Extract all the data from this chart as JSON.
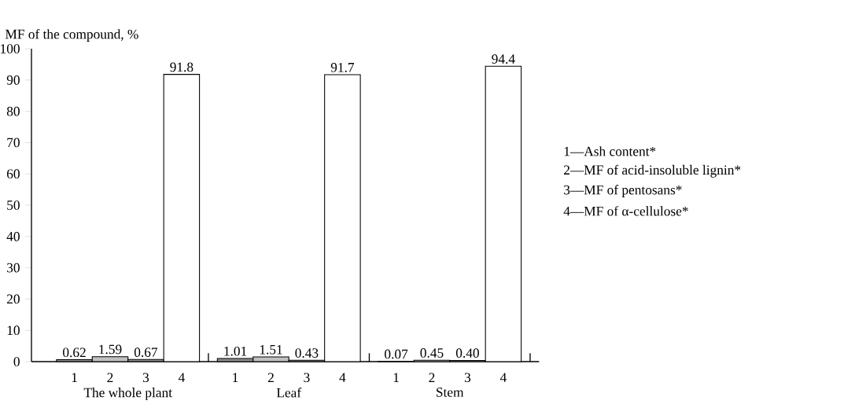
{
  "chart_data": {
    "type": "bar",
    "ylabel": "MF of the compound, %",
    "categories": [
      "1",
      "2",
      "3",
      "4",
      "1",
      "2",
      "3",
      "4",
      "1",
      "2",
      "3",
      "4"
    ],
    "values": [
      0.62,
      1.59,
      0.67,
      91.8,
      1.01,
      1.51,
      0.43,
      91.7,
      0.07,
      0.45,
      0.4,
      94.4
    ],
    "value_labels": [
      "0.62",
      "1.59",
      "0.67",
      "91.8",
      "1.01",
      "1.51",
      "0.43",
      "91.7",
      "0.07",
      "0.45",
      "0.40",
      "94.4"
    ],
    "colors": [
      "#8c8c8c",
      "#c0c0c0",
      "#8c8c8c",
      "#ffffff",
      "#8c8c8c",
      "#c0c0c0",
      "#8c8c8c",
      "#ffffff",
      "#8c8c8c",
      "#c0c0c0",
      "#8c8c8c",
      "#ffffff"
    ],
    "ylim": [
      0,
      100
    ],
    "yticks": [
      0,
      10,
      20,
      30,
      40,
      50,
      60,
      70,
      80,
      90,
      100
    ],
    "annotations": [
      "The whole plant",
      "Leaf",
      "Stem",
      "1—Ash content*",
      "2—MF of acid-insoluble lignin*",
      "3—MF of pentosans*",
      "4—MF of α-cellulose*"
    ]
  }
}
